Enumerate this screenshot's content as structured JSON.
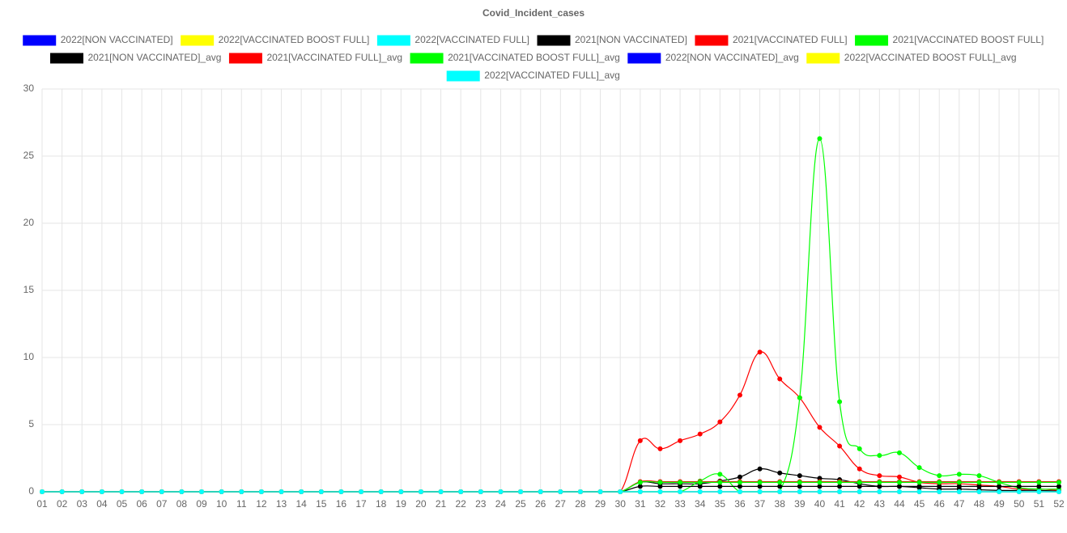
{
  "chart_data": {
    "type": "line",
    "title": "Covid_Incident_cases",
    "categories": [
      "01",
      "02",
      "03",
      "04",
      "05",
      "06",
      "07",
      "08",
      "09",
      "10",
      "11",
      "12",
      "13",
      "14",
      "15",
      "16",
      "17",
      "18",
      "19",
      "20",
      "21",
      "22",
      "23",
      "24",
      "25",
      "26",
      "27",
      "28",
      "29",
      "30",
      "31",
      "32",
      "33",
      "34",
      "35",
      "36",
      "37",
      "38",
      "39",
      "40",
      "41",
      "42",
      "43",
      "44",
      "45",
      "46",
      "47",
      "48",
      "49",
      "50",
      "51",
      "52"
    ],
    "ylim": [
      0,
      30
    ],
    "yticks": [
      0,
      5,
      10,
      15,
      20,
      25,
      30
    ],
    "grid": true,
    "series": [
      {
        "name": "2022[NON VACCINATED]",
        "color": "#0000ff",
        "values": [
          0,
          0,
          0,
          0,
          0,
          0,
          0,
          0,
          0,
          0,
          0,
          0,
          0,
          0,
          0,
          0,
          0,
          0,
          0,
          0,
          0,
          0,
          0,
          0,
          0,
          0,
          0,
          0,
          0,
          0,
          0,
          0,
          0,
          0,
          0,
          0,
          0,
          0,
          0,
          0,
          0,
          0,
          0,
          0,
          0,
          0,
          0,
          0,
          0,
          0,
          0,
          0
        ]
      },
      {
        "name": "2022[VACCINATED BOOST FULL]",
        "color": "#ffff00",
        "values": [
          0,
          0,
          0,
          0,
          0,
          0,
          0,
          0,
          0,
          0,
          0,
          0,
          0,
          0,
          0,
          0,
          0,
          0,
          0,
          0,
          0,
          0,
          0,
          0,
          0,
          0,
          0,
          0,
          0,
          0,
          0,
          0,
          0,
          0,
          0,
          0,
          0,
          0,
          0,
          0,
          0,
          0,
          0,
          0,
          0,
          0,
          0,
          0,
          0,
          0,
          0,
          0
        ]
      },
      {
        "name": "2022[VACCINATED FULL]",
        "color": "#00ffff",
        "values": [
          0,
          0,
          0,
          0,
          0,
          0,
          0,
          0,
          0,
          0,
          0,
          0,
          0,
          0,
          0,
          0,
          0,
          0,
          0,
          0,
          0,
          0,
          0,
          0,
          0,
          0,
          0,
          0,
          0,
          0,
          0,
          0,
          0,
          0,
          0,
          0,
          0,
          0,
          0,
          0,
          0,
          0,
          0,
          0,
          0,
          0,
          0,
          0,
          0,
          0,
          0,
          0
        ]
      },
      {
        "name": "2021[NON VACCINATED]",
        "color": "#000000",
        "values": [
          0,
          0,
          0,
          0,
          0,
          0,
          0,
          0,
          0,
          0,
          0,
          0,
          0,
          0,
          0,
          0,
          0,
          0,
          0,
          0,
          0,
          0,
          0,
          0,
          0,
          0,
          0,
          0,
          0,
          0,
          0.7,
          0.6,
          0.6,
          0.6,
          0.8,
          1.1,
          1.7,
          1.4,
          1.2,
          1.0,
          0.9,
          0.6,
          0.4,
          0.4,
          0.3,
          0.2,
          0.2,
          0.15,
          0.1,
          0.1,
          0.1,
          0.05
        ]
      },
      {
        "name": "2021[VACCINATED FULL]",
        "color": "#ff0000",
        "values": [
          0,
          0,
          0,
          0,
          0,
          0,
          0,
          0,
          0,
          0,
          0,
          0,
          0,
          0,
          0,
          0,
          0,
          0,
          0,
          0,
          0,
          0,
          0,
          0,
          0,
          0,
          0,
          0,
          0,
          0,
          3.8,
          3.2,
          3.8,
          4.3,
          5.2,
          7.2,
          10.4,
          8.4,
          7.0,
          4.8,
          3.4,
          1.7,
          1.2,
          1.1,
          0.7,
          0.6,
          0.6,
          0.5,
          0.4,
          0.2,
          0.2,
          0.1
        ]
      },
      {
        "name": "2021[VACCINATED BOOST FULL]",
        "color": "#00ff00",
        "values": [
          0,
          0,
          0,
          0,
          0,
          0,
          0,
          0,
          0,
          0,
          0,
          0,
          0,
          0,
          0,
          0,
          0,
          0,
          0,
          0,
          0,
          0,
          0,
          0,
          0,
          0,
          0,
          0,
          0,
          0,
          0,
          0,
          0,
          0.8,
          1.3,
          0,
          0,
          0,
          7.0,
          26.3,
          6.7,
          3.2,
          2.7,
          2.9,
          1.8,
          1.2,
          1.3,
          1.2,
          0.7,
          0.3,
          0.2,
          0.2
        ]
      },
      {
        "name": "2021[NON VACCINATED]_avg",
        "color": "#000000",
        "values": [
          0,
          0,
          0,
          0,
          0,
          0,
          0,
          0,
          0,
          0,
          0,
          0,
          0,
          0,
          0,
          0,
          0,
          0,
          0,
          0,
          0,
          0,
          0,
          0,
          0,
          0,
          0,
          0,
          0,
          0,
          0.4,
          0.4,
          0.4,
          0.4,
          0.4,
          0.4,
          0.4,
          0.4,
          0.4,
          0.4,
          0.4,
          0.4,
          0.4,
          0.4,
          0.4,
          0.4,
          0.4,
          0.4,
          0.4,
          0.4,
          0.4,
          0.4
        ]
      },
      {
        "name": "2021[VACCINATED FULL]_avg",
        "color": "#ff0000",
        "values": [
          0,
          0,
          0,
          0,
          0,
          0,
          0,
          0,
          0,
          0,
          0,
          0,
          0,
          0,
          0,
          0,
          0,
          0,
          0,
          0,
          0,
          0,
          0,
          0,
          0,
          0,
          0,
          0,
          0,
          0,
          0.75,
          0.75,
          0.75,
          0.75,
          0.75,
          0.75,
          0.75,
          0.75,
          0.75,
          0.75,
          0.75,
          0.75,
          0.75,
          0.75,
          0.75,
          0.75,
          0.75,
          0.75,
          0.75,
          0.75,
          0.75,
          0.75
        ]
      },
      {
        "name": "2021[VACCINATED BOOST FULL]_avg",
        "color": "#00ff00",
        "values": [
          0,
          0,
          0,
          0,
          0,
          0,
          0,
          0,
          0,
          0,
          0,
          0,
          0,
          0,
          0,
          0,
          0,
          0,
          0,
          0,
          0,
          0,
          0,
          0,
          0,
          0,
          0,
          0,
          0,
          0,
          0.7,
          0.7,
          0.7,
          0.7,
          0.7,
          0.7,
          0.7,
          0.7,
          0.7,
          0.7,
          0.7,
          0.7,
          0.7,
          0.7,
          0.7,
          0.7,
          0.7,
          0.7,
          0.7,
          0.7,
          0.7,
          0.7
        ]
      },
      {
        "name": "2022[NON VACCINATED]_avg",
        "color": "#0000ff",
        "values": [
          0,
          0,
          0,
          0,
          0,
          0,
          0,
          0,
          0,
          0,
          0,
          0,
          0,
          0,
          0,
          0,
          0,
          0,
          0,
          0,
          0,
          0,
          0,
          0,
          0,
          0,
          0,
          0,
          0,
          0,
          0,
          0,
          0,
          0,
          0,
          0,
          0,
          0,
          0,
          0,
          0,
          0,
          0,
          0,
          0,
          0,
          0,
          0,
          0,
          0,
          0,
          0
        ]
      },
      {
        "name": "2022[VACCINATED BOOST FULL]_avg",
        "color": "#ffff00",
        "values": [
          0,
          0,
          0,
          0,
          0,
          0,
          0,
          0,
          0,
          0,
          0,
          0,
          0,
          0,
          0,
          0,
          0,
          0,
          0,
          0,
          0,
          0,
          0,
          0,
          0,
          0,
          0,
          0,
          0,
          0,
          0,
          0,
          0,
          0,
          0,
          0,
          0,
          0,
          0,
          0,
          0,
          0,
          0,
          0,
          0,
          0,
          0,
          0,
          0,
          0,
          0,
          0
        ]
      },
      {
        "name": "2022[VACCINATED FULL]_avg",
        "color": "#00ffff",
        "values": [
          0,
          0,
          0,
          0,
          0,
          0,
          0,
          0,
          0,
          0,
          0,
          0,
          0,
          0,
          0,
          0,
          0,
          0,
          0,
          0,
          0,
          0,
          0,
          0,
          0,
          0,
          0,
          0,
          0,
          0,
          0,
          0,
          0,
          0,
          0,
          0,
          0,
          0,
          0,
          0,
          0,
          0,
          0,
          0,
          0,
          0,
          0,
          0,
          0,
          0,
          0,
          0
        ]
      }
    ]
  }
}
